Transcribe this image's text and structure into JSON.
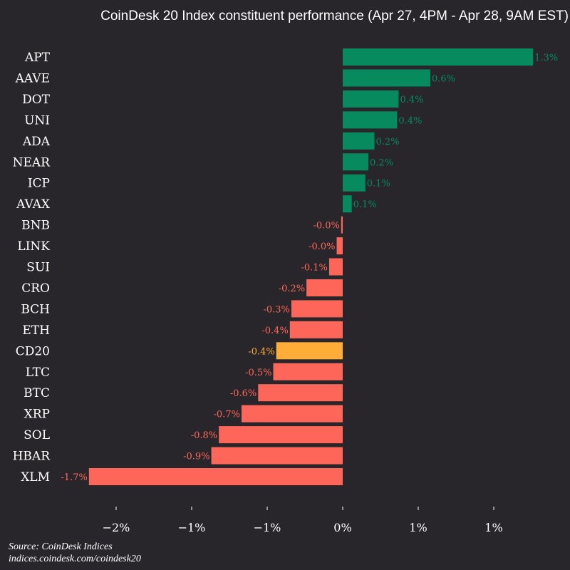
{
  "chart_data": {
    "type": "bar",
    "orientation": "horizontal",
    "title": "CoinDesk 20 Index constituent performance (Apr 27, 4PM - Apr 28, 9AM EST)",
    "categories": [
      "APT",
      "AAVE",
      "DOT",
      "UNI",
      "ADA",
      "NEAR",
      "ICP",
      "AVAX",
      "BNB",
      "LINK",
      "SUI",
      "CRO",
      "BCH",
      "ETH",
      "CD20",
      "LTC",
      "BTC",
      "XRP",
      "SOL",
      "HBAR",
      "XLM"
    ],
    "values": [
      1.26,
      0.58,
      0.37,
      0.36,
      0.21,
      0.17,
      0.15,
      0.06,
      -0.01,
      -0.04,
      -0.09,
      -0.24,
      -0.34,
      -0.35,
      -0.44,
      -0.46,
      -0.56,
      -0.67,
      -0.82,
      -0.87,
      -1.68
    ],
    "data_labels": [
      "1.3%",
      "0.6%",
      "0.4%",
      "0.4%",
      "0.2%",
      "0.2%",
      "0.1%",
      "0.1%",
      "-0.0%",
      "-0.0%",
      "-0.1%",
      "-0.2%",
      "-0.3%",
      "-0.4%",
      "-0.4%",
      "-0.5%",
      "-0.6%",
      "-0.7%",
      "-0.8%",
      "-0.9%",
      "-1.7%"
    ],
    "highlight_category": "CD20",
    "xticks": [
      -1.5,
      -1.0,
      -0.5,
      0,
      0.5,
      1.0
    ],
    "xtick_labels": [
      "−2%",
      "−1%",
      "−1%",
      "0%",
      "1%",
      "1%"
    ],
    "xlim": [
      -2.28,
      1.52
    ],
    "grid": false,
    "colors": {
      "positive": "#078a5e",
      "negative": "#ff665a",
      "highlight": "#ffad39",
      "background": "#28262a",
      "text": "#ffffff"
    }
  },
  "source": {
    "line1": "Source: CoinDesk Indices",
    "line2": "indices.coindesk.com/coindesk20"
  }
}
